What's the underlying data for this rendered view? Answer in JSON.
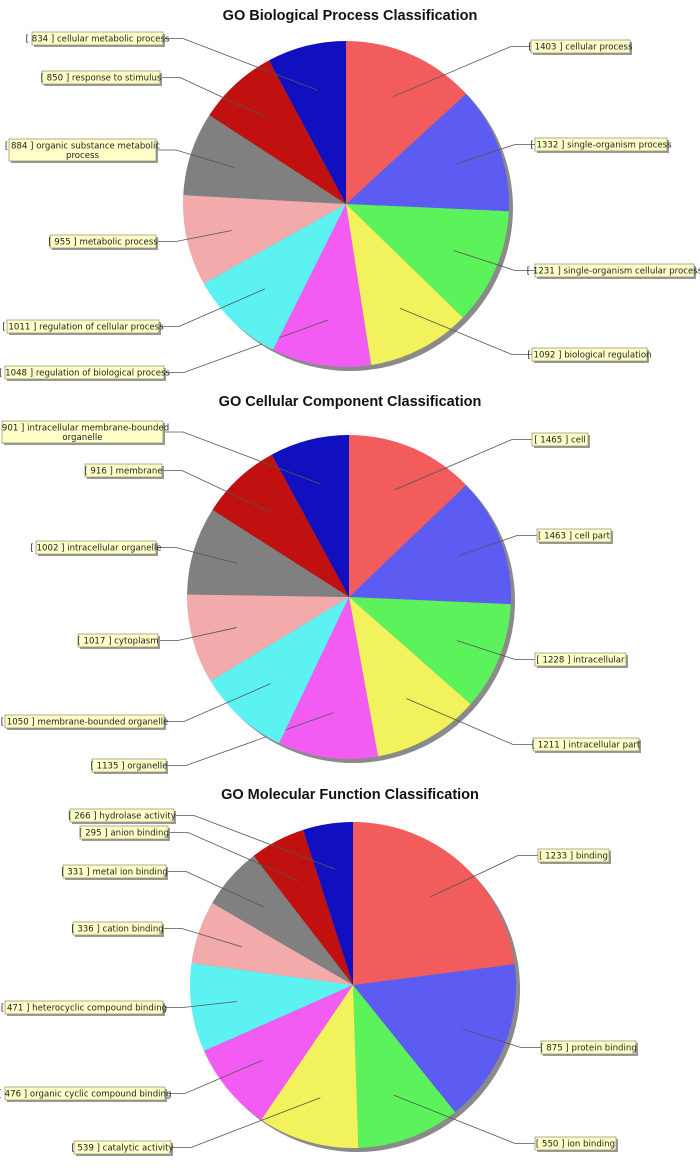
{
  "chart_data": [
    {
      "type": "pie",
      "title": "GO Biological Process Classification",
      "slices": [
        {
          "label": "cellular process",
          "value": 1403,
          "color": "#f25c5c"
        },
        {
          "label": "single-organism process",
          "value": 1332,
          "color": "#5c5cf2"
        },
        {
          "label": "single-organism cellular process",
          "value": 1231,
          "color": "#5cf25c"
        },
        {
          "label": "biological regulation",
          "value": 1092,
          "color": "#f2f25c"
        },
        {
          "label": "regulation of biological process",
          "value": 1048,
          "color": "#f25cf2"
        },
        {
          "label": "regulation of cellular process",
          "value": 1011,
          "color": "#5cf2f2"
        },
        {
          "label": "metabolic process",
          "value": 955,
          "color": "#f2aaaa"
        },
        {
          "label": "organic substance metabolic process",
          "value": 884,
          "color": "#808080"
        },
        {
          "label": "response to stimulus",
          "value": 850,
          "color": "#c01010"
        },
        {
          "label": "cellular metabolic process",
          "value": 834,
          "color": "#1010c0"
        }
      ]
    },
    {
      "type": "pie",
      "title": "GO Cellular Component Classification",
      "slices": [
        {
          "label": "cell",
          "value": 1465,
          "color": "#f25c5c"
        },
        {
          "label": "cell part",
          "value": 1463,
          "color": "#5c5cf2"
        },
        {
          "label": "intracellular",
          "value": 1228,
          "color": "#5cf25c"
        },
        {
          "label": "intracellular part",
          "value": 1211,
          "color": "#f2f25c"
        },
        {
          "label": "organelle",
          "value": 1135,
          "color": "#f25cf2"
        },
        {
          "label": "membrane-bounded organelle",
          "value": 1050,
          "color": "#5cf2f2"
        },
        {
          "label": "cytoplasm",
          "value": 1017,
          "color": "#f2aaaa"
        },
        {
          "label": "intracellular organelle",
          "value": 1002,
          "color": "#808080"
        },
        {
          "label": "membrane",
          "value": 916,
          "color": "#c01010"
        },
        {
          "label": "intracellular membrane-bounded organelle",
          "value": 901,
          "color": "#1010c0"
        }
      ]
    },
    {
      "type": "pie",
      "title": "GO Molecular Function Classification",
      "slices": [
        {
          "label": "binding",
          "value": 1233,
          "color": "#f25c5c"
        },
        {
          "label": "protein binding",
          "value": 875,
          "color": "#5c5cf2"
        },
        {
          "label": "ion binding",
          "value": 550,
          "color": "#5cf25c"
        },
        {
          "label": "catalytic activity",
          "value": 539,
          "color": "#f2f25c"
        },
        {
          "label": "organic cyclic compound binding",
          "value": 476,
          "color": "#f25cf2"
        },
        {
          "label": "heterocyclic compound binding",
          "value": 471,
          "color": "#5cf2f2"
        },
        {
          "label": "cation binding",
          "value": 336,
          "color": "#f2aaaa"
        },
        {
          "label": "metal ion binding",
          "value": 331,
          "color": "#808080"
        },
        {
          "label": "anion binding",
          "value": 295,
          "color": "#c01010"
        },
        {
          "label": "hydrolase activity",
          "value": 266,
          "color": "#1010c0"
        }
      ]
    }
  ]
}
